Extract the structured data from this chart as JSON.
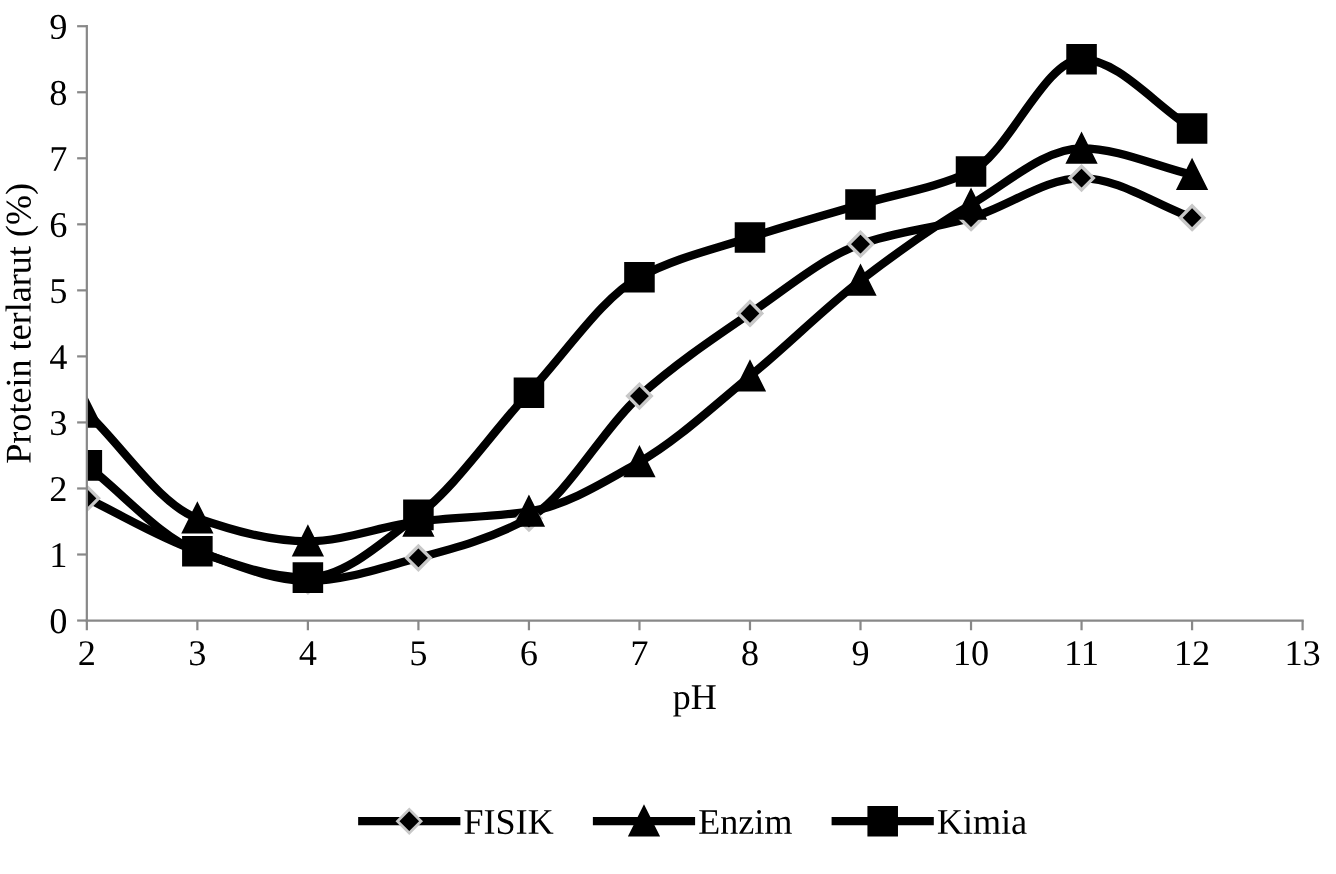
{
  "chart_data": {
    "type": "line",
    "xlabel": "pH",
    "ylabel": "Protein terlarut (%)",
    "x": [
      2,
      3,
      4,
      5,
      6,
      7,
      8,
      9,
      10,
      11,
      12
    ],
    "series": [
      {
        "name": "FISIK",
        "color": "#000000",
        "marker": "diamond",
        "values": [
          1.85,
          1.05,
          0.6,
          0.95,
          1.55,
          3.4,
          4.65,
          5.7,
          6.1,
          6.7,
          6.1
        ]
      },
      {
        "name": "Enzim",
        "color": "#000000",
        "marker": "triangle",
        "values": [
          3.15,
          1.55,
          1.2,
          1.5,
          1.65,
          2.4,
          3.7,
          5.15,
          6.3,
          7.15,
          6.75
        ]
      },
      {
        "name": "Kimia",
        "color": "#000000",
        "marker": "square",
        "values": [
          2.35,
          1.05,
          0.65,
          1.6,
          3.45,
          5.2,
          5.8,
          6.3,
          6.8,
          8.5,
          7.45
        ]
      }
    ],
    "xlim": [
      2,
      13
    ],
    "xticks": [
      2,
      3,
      4,
      5,
      6,
      7,
      8,
      9,
      10,
      11,
      12,
      13
    ],
    "ylim": [
      0,
      9
    ],
    "yticks": [
      0,
      1,
      2,
      3,
      4,
      5,
      6,
      7,
      8,
      9
    ],
    "grid": false,
    "legend": "bottom",
    "line_style": "solid"
  }
}
